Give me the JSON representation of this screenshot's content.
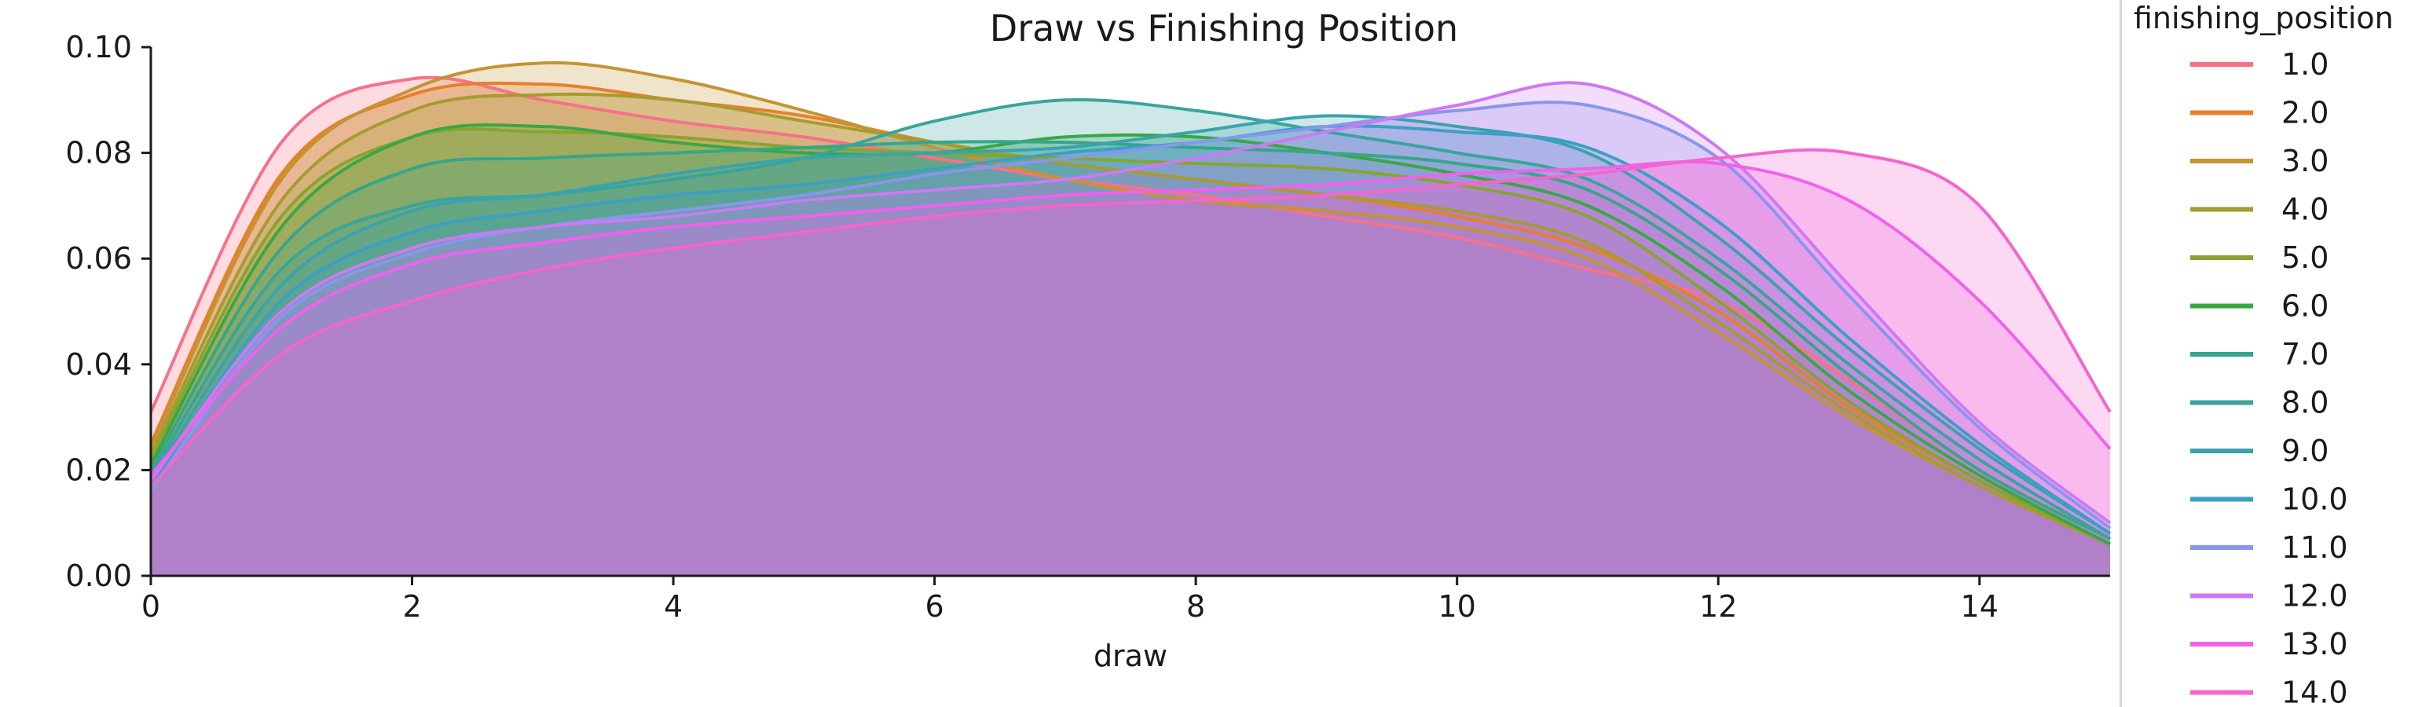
{
  "chart_data": {
    "type": "area",
    "title": "Draw vs Finishing Position",
    "xlabel": "draw",
    "ylabel": "",
    "xlim": [
      0,
      15
    ],
    "ylim": [
      0,
      0.1
    ],
    "x_ticks": [
      "0",
      "2",
      "4",
      "6",
      "8",
      "10",
      "12",
      "14"
    ],
    "y_ticks": [
      "0.00",
      "0.02",
      "0.04",
      "0.06",
      "0.08",
      "0.10"
    ],
    "grid": false,
    "legend_placement": "right, outside plot",
    "legend_title": "finishing_position",
    "fill_note": "each KDE curve is shaded underneath; overlapping fills appear as a dense purple base",
    "x": [
      0,
      1,
      2,
      3,
      4,
      5,
      6,
      7,
      8,
      9,
      10,
      11,
      12,
      13,
      14,
      15
    ],
    "series": [
      {
        "name": "1.0",
        "color": "#f77189",
        "values": [
          0.031,
          0.082,
          0.094,
          0.09,
          0.086,
          0.083,
          0.079,
          0.075,
          0.072,
          0.068,
          0.064,
          0.058,
          0.052,
          0.037,
          0.02,
          0.007
        ]
      },
      {
        "name": "2.0",
        "color": "#e5802a",
        "values": [
          0.025,
          0.076,
          0.091,
          0.093,
          0.09,
          0.087,
          0.082,
          0.078,
          0.075,
          0.072,
          0.068,
          0.062,
          0.05,
          0.032,
          0.018,
          0.006
        ]
      },
      {
        "name": "3.0",
        "color": "#c39532",
        "values": [
          0.024,
          0.075,
          0.092,
          0.097,
          0.094,
          0.088,
          0.081,
          0.075,
          0.071,
          0.069,
          0.066,
          0.06,
          0.046,
          0.03,
          0.017,
          0.006
        ]
      },
      {
        "name": "4.0",
        "color": "#a59c31",
        "values": [
          0.023,
          0.071,
          0.088,
          0.091,
          0.09,
          0.086,
          0.082,
          0.078,
          0.075,
          0.072,
          0.069,
          0.063,
          0.048,
          0.031,
          0.017,
          0.006
        ]
      },
      {
        "name": "5.0",
        "color": "#86a530",
        "values": [
          0.022,
          0.068,
          0.083,
          0.084,
          0.083,
          0.081,
          0.08,
          0.079,
          0.078,
          0.077,
          0.074,
          0.068,
          0.052,
          0.033,
          0.018,
          0.006
        ]
      },
      {
        "name": "6.0",
        "color": "#38a844",
        "values": [
          0.021,
          0.066,
          0.083,
          0.085,
          0.082,
          0.08,
          0.08,
          0.083,
          0.083,
          0.08,
          0.076,
          0.07,
          0.055,
          0.035,
          0.019,
          0.006
        ]
      },
      {
        "name": "7.0",
        "color": "#36a68a",
        "values": [
          0.02,
          0.062,
          0.077,
          0.079,
          0.08,
          0.081,
          0.082,
          0.082,
          0.081,
          0.08,
          0.078,
          0.073,
          0.058,
          0.038,
          0.02,
          0.007
        ]
      },
      {
        "name": "8.0",
        "color": "#38a59c",
        "values": [
          0.019,
          0.058,
          0.07,
          0.072,
          0.075,
          0.079,
          0.086,
          0.09,
          0.088,
          0.084,
          0.08,
          0.075,
          0.06,
          0.04,
          0.022,
          0.007
        ]
      },
      {
        "name": "9.0",
        "color": "#3aa3ad",
        "values": [
          0.018,
          0.055,
          0.069,
          0.072,
          0.076,
          0.079,
          0.08,
          0.081,
          0.084,
          0.087,
          0.085,
          0.08,
          0.064,
          0.043,
          0.024,
          0.008
        ]
      },
      {
        "name": "10.0",
        "color": "#3c9fc5",
        "values": [
          0.017,
          0.052,
          0.065,
          0.069,
          0.072,
          0.074,
          0.077,
          0.08,
          0.082,
          0.085,
          0.084,
          0.081,
          0.067,
          0.045,
          0.025,
          0.008
        ]
      },
      {
        "name": "11.0",
        "color": "#8896ec",
        "values": [
          0.016,
          0.049,
          0.061,
          0.066,
          0.069,
          0.072,
          0.076,
          0.079,
          0.082,
          0.085,
          0.088,
          0.089,
          0.079,
          0.053,
          0.028,
          0.009
        ]
      },
      {
        "name": "12.0",
        "color": "#cc7af4",
        "values": [
          0.018,
          0.05,
          0.062,
          0.066,
          0.068,
          0.071,
          0.073,
          0.075,
          0.079,
          0.084,
          0.089,
          0.093,
          0.081,
          0.055,
          0.029,
          0.01
        ]
      },
      {
        "name": "13.0",
        "color": "#f062ec",
        "values": [
          0.019,
          0.047,
          0.059,
          0.063,
          0.066,
          0.068,
          0.07,
          0.072,
          0.073,
          0.074,
          0.076,
          0.077,
          0.078,
          0.071,
          0.052,
          0.024
        ]
      },
      {
        "name": "14.0",
        "color": "#f565cc",
        "values": [
          0.017,
          0.042,
          0.052,
          0.058,
          0.062,
          0.065,
          0.068,
          0.07,
          0.071,
          0.072,
          0.074,
          0.076,
          0.079,
          0.08,
          0.07,
          0.031
        ]
      }
    ]
  }
}
